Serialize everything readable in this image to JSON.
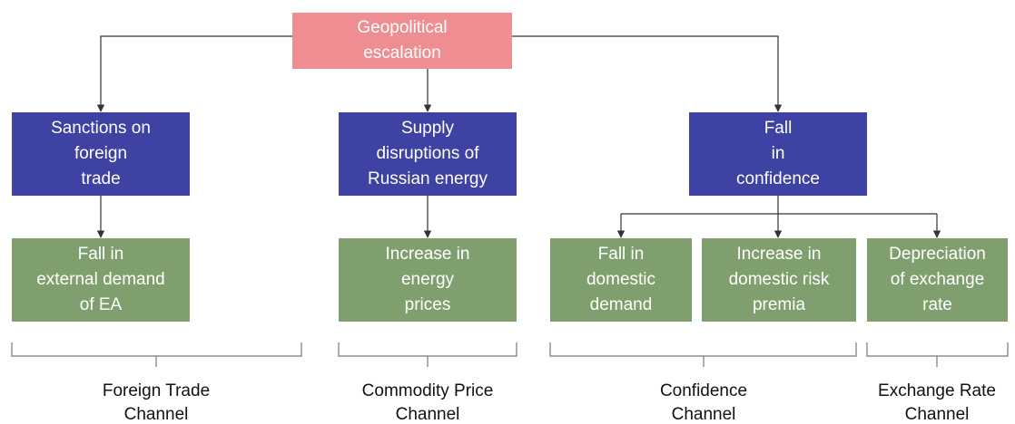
{
  "root": {
    "lines": [
      "Geopolitical",
      "escalation"
    ]
  },
  "causes": [
    {
      "lines": [
        "Sanctions on",
        "foreign",
        "trade"
      ]
    },
    {
      "lines": [
        "Supply",
        "disruptions of",
        "Russian energy"
      ]
    },
    {
      "lines": [
        "Fall",
        "in",
        "confidence"
      ]
    }
  ],
  "effects": [
    {
      "lines": [
        "Fall in",
        "external demand",
        "of EA"
      ]
    },
    {
      "lines": [
        "Increase in",
        "energy",
        "prices"
      ]
    },
    {
      "lines": [
        "Fall in",
        "domestic",
        "demand"
      ]
    },
    {
      "lines": [
        "Increase in",
        "domestic risk",
        "premia"
      ]
    },
    {
      "lines": [
        "Depreciation",
        "of exchange",
        "rate"
      ]
    }
  ],
  "channels": [
    {
      "lines": [
        "Foreign Trade",
        "Channel"
      ]
    },
    {
      "lines": [
        "Commodity Price",
        "Channel"
      ]
    },
    {
      "lines": [
        "Confidence",
        "Channel"
      ]
    },
    {
      "lines": [
        "Exchange Rate",
        "Channel"
      ]
    }
  ]
}
